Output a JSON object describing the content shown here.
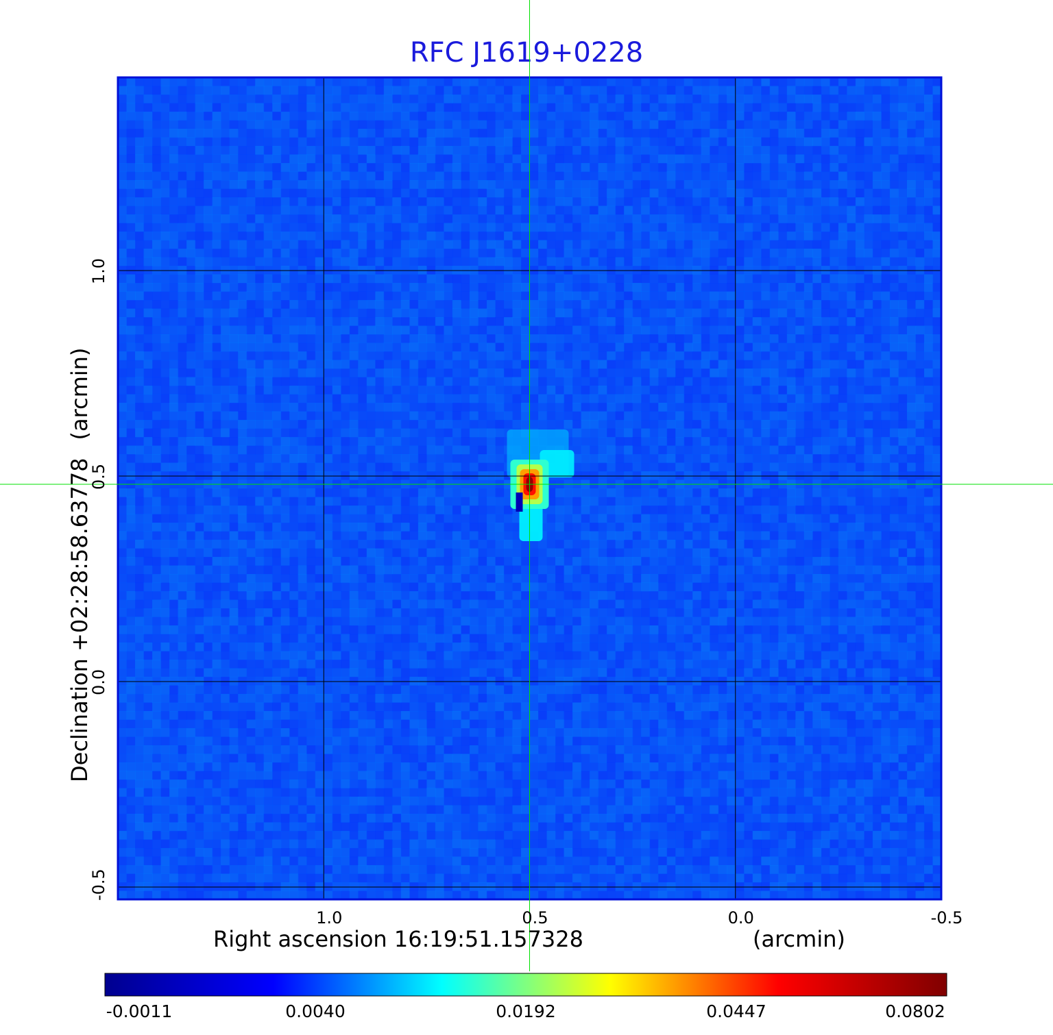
{
  "chart_data": {
    "type": "heatmap",
    "title": "RFC J1619+0228",
    "xlabel": "Right ascension  16:19:51.157328",
    "xunit": "(arcmin)",
    "ylabel": "Declination  +02:28:58.63778",
    "yunit": "(arcmin)",
    "xlim": [
      1.5,
      -0.5
    ],
    "ylim": [
      -0.53,
      1.47
    ],
    "x_ticks": [
      {
        "value": 1.0,
        "label": "1.0"
      },
      {
        "value": 0.5,
        "label": "0.5"
      },
      {
        "value": 0.0,
        "label": "0.0"
      },
      {
        "value": -0.5,
        "label": "-0.5"
      }
    ],
    "y_ticks": [
      {
        "value": -0.5,
        "label": "-0.5"
      },
      {
        "value": 0.0,
        "label": "0.0"
      },
      {
        "value": 0.5,
        "label": "0.5"
      },
      {
        "value": 1.0,
        "label": "1.0"
      }
    ],
    "grid": true,
    "crosshair": {
      "x": 0.5,
      "y": 0.48,
      "color": "#00e000"
    },
    "peak": {
      "x": 0.5,
      "y": 0.48,
      "value": 0.0802
    },
    "colorbar": {
      "colormap": "jet",
      "tick_values": [
        -0.0011,
        0.004,
        0.0192,
        0.0447,
        0.0802
      ],
      "tick_labels": [
        "-0.0011",
        "0.0040",
        "0.0192",
        "0.0447",
        "0.0802"
      ],
      "colors": [
        "#00008f",
        "#0000ff",
        "#00ffff",
        "#ffff00",
        "#ff0000",
        "#800000"
      ]
    },
    "background_color": "#1446f0",
    "frame_color": "#0010d8"
  }
}
